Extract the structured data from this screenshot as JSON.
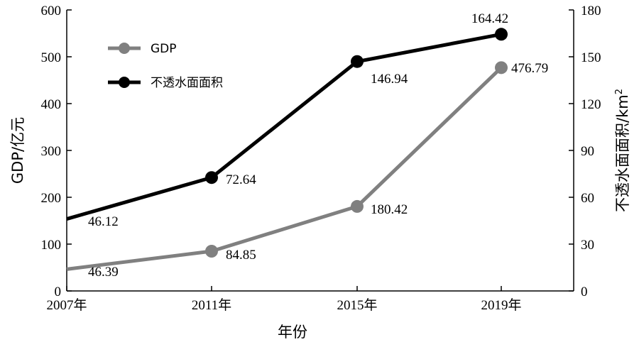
{
  "chart_data": {
    "type": "line",
    "categories": [
      "2007年",
      "2011年",
      "2015年",
      "2019年"
    ],
    "xlabel": "年份",
    "ylabel_left": "GDP/亿元",
    "ylabel_right": "不透水面面积/km",
    "ylabel_right_sup": "2",
    "ylim_left": [
      0,
      600
    ],
    "yticks_left": [
      0,
      100,
      200,
      300,
      400,
      500,
      600
    ],
    "ylim_right": [
      0,
      180
    ],
    "yticks_right": [
      0,
      30,
      60,
      90,
      120,
      150,
      180
    ],
    "grid": false,
    "legend_position": "top-left",
    "series": [
      {
        "name": "GDP",
        "axis": "left",
        "color": "#808080",
        "values": [
          46.39,
          84.85,
          180.42,
          476.79
        ],
        "labels": [
          "46.39",
          "84.85",
          "180.42",
          "476.79"
        ],
        "line_start_value": 46.39
      },
      {
        "name": "不透水面面积",
        "axis": "right",
        "color": "#000000",
        "values": [
          46.12,
          72.64,
          146.94,
          164.42
        ],
        "labels": [
          "46.12",
          "72.64",
          "146.94",
          "164.42"
        ],
        "line_start_value": 46.12
      }
    ]
  }
}
